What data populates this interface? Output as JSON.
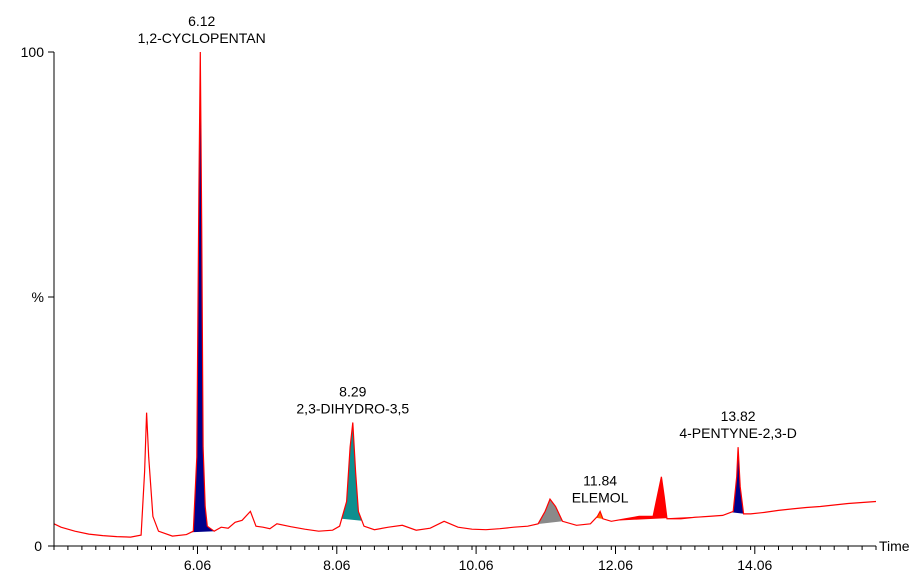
{
  "chart_data": {
    "type": "line",
    "xlabel": "Time",
    "ylabel": "%",
    "xlim": [
      4.0,
      15.8
    ],
    "ylim": [
      0,
      100
    ],
    "x_ticks": [
      "6.06",
      "8.06",
      "10.06",
      "12.06",
      "14.06"
    ],
    "y_ticks": [
      "0",
      "%",
      "100"
    ],
    "grid": false,
    "colors": {
      "trace": "#ff0000",
      "peak_fill_main": "#00008b",
      "peak_fill_teal": "#0e8f8f",
      "peak_fill_gray": "#8a8a8a",
      "peak_fill_orange": "#ff6a00",
      "peak_fill_red": "#ff0000"
    },
    "peak_annotations": [
      {
        "rt": "6.12",
        "name": "1,2-CYCLOPENTAN",
        "x": 6.12,
        "y": 100
      },
      {
        "rt": "8.29",
        "name": "2,3-DIHYDRO-3,5",
        "x": 8.29,
        "y": 25
      },
      {
        "rt": "11.84",
        "name": "ELEMOL",
        "x": 11.84,
        "y": 7
      },
      {
        "rt": "13.82",
        "name": "4-PENTYNE-2,3-D",
        "x": 13.82,
        "y": 20
      }
    ],
    "series": [
      {
        "x": [
          4.0,
          4.1,
          4.3,
          4.5,
          4.7,
          4.9,
          5.1,
          5.25,
          5.3,
          5.33,
          5.36,
          5.42,
          5.5,
          5.7,
          5.9,
          6.0,
          6.05,
          6.08,
          6.1,
          6.12,
          6.14,
          6.17,
          6.2,
          6.25,
          6.3,
          6.4,
          6.5,
          6.6,
          6.7,
          6.82,
          6.86,
          6.9,
          7.0,
          7.1,
          7.2,
          7.4,
          7.6,
          7.8,
          8.0,
          8.1,
          8.2,
          8.25,
          8.29,
          8.33,
          8.37,
          8.45,
          8.6,
          8.8,
          9.0,
          9.2,
          9.4,
          9.6,
          9.8,
          10.0,
          10.2,
          10.4,
          10.6,
          10.8,
          10.95,
          11.05,
          11.12,
          11.2,
          11.3,
          11.5,
          11.7,
          11.8,
          11.84,
          11.88,
          12.0,
          12.2,
          12.4,
          12.6,
          12.72,
          12.76,
          12.8,
          13.0,
          13.2,
          13.4,
          13.6,
          13.75,
          13.8,
          13.82,
          13.85,
          13.9,
          14.0,
          14.2,
          14.4,
          14.6,
          14.8,
          15.0,
          15.2,
          15.4,
          15.6,
          15.8
        ],
        "y": [
          4.5,
          3.8,
          3.0,
          2.4,
          2.1,
          1.9,
          1.8,
          2.2,
          15.0,
          27.0,
          18.0,
          6.0,
          3.0,
          2.0,
          2.3,
          3.0,
          18.0,
          72.0,
          100.0,
          65.0,
          20.0,
          8.0,
          4.0,
          3.5,
          3.0,
          3.8,
          3.6,
          4.8,
          5.2,
          7.0,
          5.5,
          4.0,
          3.8,
          3.5,
          4.5,
          3.9,
          3.4,
          3.0,
          3.2,
          4.0,
          9.0,
          20.0,
          25.0,
          15.0,
          7.0,
          4.0,
          3.3,
          3.8,
          4.2,
          3.2,
          3.6,
          5.0,
          3.8,
          3.4,
          3.3,
          3.5,
          3.8,
          4.0,
          4.5,
          7.0,
          9.5,
          8.0,
          5.0,
          4.2,
          4.5,
          6.0,
          7.0,
          5.5,
          5.0,
          5.5,
          6.0,
          6.0,
          14.0,
          10.0,
          5.5,
          5.5,
          5.8,
          6.0,
          6.2,
          7.0,
          14.0,
          20.0,
          12.0,
          6.5,
          6.5,
          6.8,
          7.2,
          7.5,
          7.8,
          8.0,
          8.3,
          8.6,
          8.8,
          9.0
        ]
      }
    ]
  }
}
